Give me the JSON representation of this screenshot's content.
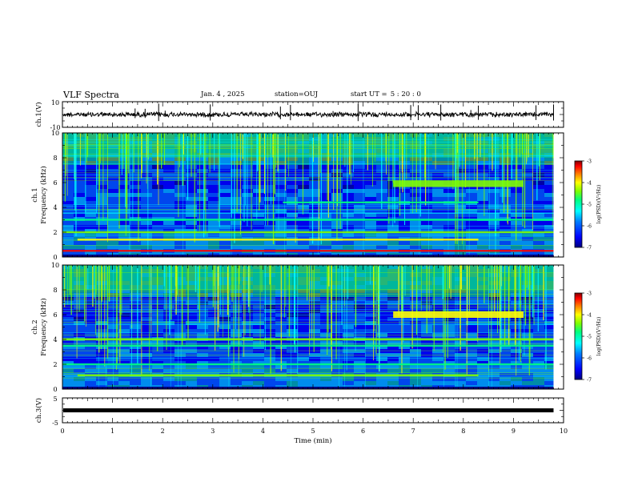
{
  "header": {
    "title": "VLF Spectra",
    "date": "Jan. 4 , 2025",
    "station": "station=OUJ",
    "start_label": "start UT =",
    "start_time": "5 : 20 : 0"
  },
  "chart_data": [
    {
      "type": "line",
      "name": "ch1-waveform",
      "ylabel": "ch.1(V)",
      "ylim": [
        -10,
        10
      ],
      "y_ticks": [
        "10",
        "-10"
      ],
      "xlim": [
        0,
        10
      ],
      "baseline": 0,
      "spikes_x": [
        1.45,
        1.65,
        1.92,
        2.05,
        2.95,
        4.35,
        4.55,
        5.4,
        5.9,
        6.95,
        7.1,
        7.55,
        8.15,
        8.3,
        9.45,
        9.8
      ]
    },
    {
      "type": "heatmap",
      "name": "ch1-spectrogram",
      "ylabel": "ch.1\nFrequency (kHz)",
      "ylim": [
        0,
        10
      ],
      "y_ticks": [
        "0",
        "2",
        "4",
        "6",
        "8",
        "10"
      ],
      "xlim": [
        0,
        10
      ],
      "colorbar": {
        "label": "log(PSD)(V²/Hz)",
        "ticks": [
          "-3",
          "-4",
          "-5",
          "-6",
          "-7"
        ],
        "range": [
          -7,
          -3
        ]
      },
      "bands": [
        {
          "f": 0.5,
          "level": -3.3,
          "from": 0,
          "to": 9.8
        },
        {
          "f": 1.4,
          "level": -4.4,
          "from": 0.3,
          "to": 8.3
        },
        {
          "f": 2.0,
          "level": -5.0,
          "from": 0,
          "to": 9.8
        },
        {
          "f": 3.0,
          "level": -5.2,
          "from": 0,
          "to": 9.8
        },
        {
          "f": 4.4,
          "level": -5.3,
          "from": 4.4,
          "to": 8.3
        },
        {
          "f": 5.9,
          "level": -4.8,
          "from": 6.6,
          "to": 9.2
        }
      ]
    },
    {
      "type": "heatmap",
      "name": "ch2-spectrogram",
      "ylabel": "ch.2\nFrequency (kHz)",
      "ylim": [
        0,
        10
      ],
      "y_ticks": [
        "0",
        "2",
        "4",
        "6",
        "8",
        "10"
      ],
      "xlim": [
        0,
        10
      ],
      "colorbar": {
        "label": "log(PSD)(V²/Hz)",
        "ticks": [
          "-3",
          "-4",
          "-5",
          "-6",
          "-7"
        ],
        "range": [
          -7,
          -3
        ]
      },
      "bands": [
        {
          "f": 1.1,
          "level": -4.6,
          "from": 0.3,
          "to": 8.3
        },
        {
          "f": 2.0,
          "level": -5.1,
          "from": 0,
          "to": 9.8
        },
        {
          "f": 3.5,
          "level": -5.3,
          "from": 0,
          "to": 9.8
        },
        {
          "f": 4.0,
          "level": -4.6,
          "from": 0,
          "to": 9.8
        },
        {
          "f": 6.0,
          "level": -4.5,
          "from": 6.6,
          "to": 9.2
        }
      ]
    },
    {
      "type": "line",
      "name": "ch3-waveform",
      "ylabel": "ch.3(V)",
      "ylim": [
        -5,
        5
      ],
      "y_ticks": [
        "5",
        "-5"
      ],
      "xlim": [
        0,
        10
      ],
      "baseline": 0
    }
  ],
  "x_axis": {
    "label": "Time (min)",
    "ticks": [
      "0",
      "1",
      "2",
      "3",
      "4",
      "5",
      "6",
      "7",
      "8",
      "9",
      "10"
    ]
  },
  "colors": {
    "colormap": [
      "#00007f",
      "#0000ff",
      "#007fff",
      "#00ffff",
      "#00ff7f",
      "#7fff00",
      "#ffff00",
      "#ff7f00",
      "#ff0000",
      "#7f0000"
    ]
  }
}
